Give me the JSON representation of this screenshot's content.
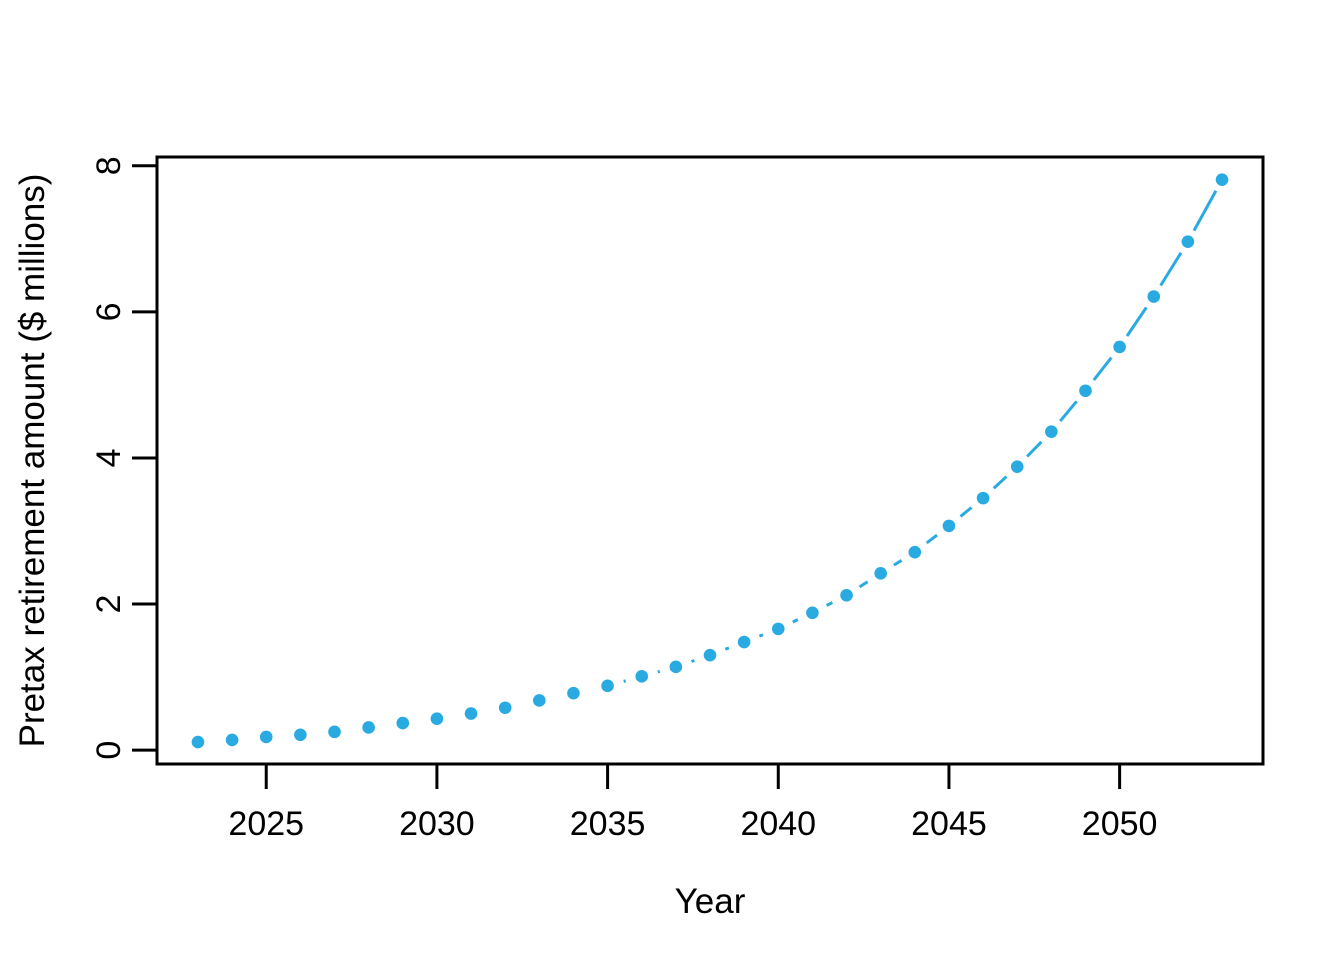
{
  "figure": {
    "background": "#FFFFFF"
  },
  "chart_data": {
    "type": "scatter",
    "title": "",
    "xlabel": "Year",
    "ylabel": "Pretax retirement amount ($ millions)",
    "x": [
      2023,
      2024,
      2025,
      2026,
      2027,
      2028,
      2029,
      2030,
      2031,
      2032,
      2033,
      2034,
      2035,
      2036,
      2037,
      2038,
      2039,
      2040,
      2041,
      2042,
      2043,
      2044,
      2045,
      2046,
      2047,
      2048,
      2049,
      2050,
      2051,
      2052,
      2053
    ],
    "series": [
      {
        "name": "pretax-retirement-amount",
        "values": [
          0.11,
          0.14,
          0.18,
          0.21,
          0.25,
          0.31,
          0.37,
          0.43,
          0.5,
          0.58,
          0.68,
          0.78,
          0.88,
          1.01,
          1.14,
          1.3,
          1.48,
          1.66,
          1.88,
          2.12,
          2.42,
          2.71,
          3.07,
          3.45,
          3.88,
          4.36,
          4.92,
          5.52,
          6.21,
          6.96,
          7.81
        ]
      }
    ],
    "x_ticks": [
      2025,
      2030,
      2035,
      2040,
      2045,
      2050
    ],
    "y_ticks": [
      0,
      2,
      4,
      6,
      8
    ],
    "xlim": [
      2021.8,
      2054.2
    ],
    "ylim": [
      -0.19,
      8.12
    ],
    "grid": false,
    "legend": "none",
    "marker": "filled-circle",
    "line_style": "segments-with-gaps",
    "point_color": "#29ABE2",
    "axis_color": "#000000",
    "text_color": "#000000"
  }
}
